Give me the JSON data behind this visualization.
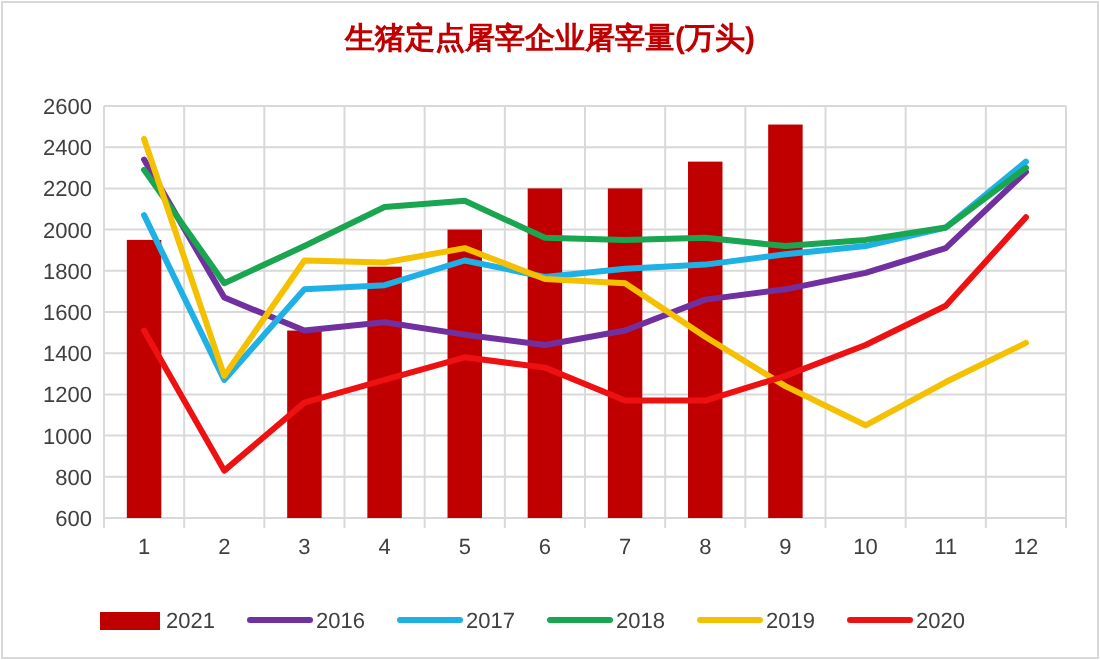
{
  "chart_data": {
    "type": "line",
    "title": "生猪定点屠宰企业屠宰量(万头)",
    "categories": [
      "1",
      "2",
      "3",
      "4",
      "5",
      "6",
      "7",
      "8",
      "9",
      "10",
      "11",
      "12"
    ],
    "ylim": [
      600,
      2600
    ],
    "yticks": [
      600,
      800,
      1000,
      1200,
      1400,
      1600,
      1800,
      2000,
      2200,
      2400,
      2600
    ],
    "grid": true,
    "legend": "bottom",
    "series": [
      {
        "name": "2021",
        "type": "bar",
        "color": "#c00000",
        "values": [
          1950,
          null,
          1510,
          1820,
          2000,
          2200,
          2200,
          2330,
          2510,
          null,
          null,
          null
        ]
      },
      {
        "name": "2016",
        "color": "#7030a0",
        "values": [
          2340,
          1670,
          1510,
          1550,
          1490,
          1440,
          1510,
          1660,
          1710,
          1790,
          1910,
          2280
        ]
      },
      {
        "name": "2017",
        "color": "#1fb0e6",
        "values": [
          2070,
          1270,
          1710,
          1730,
          1850,
          1770,
          1810,
          1830,
          1880,
          1920,
          2010,
          2330
        ]
      },
      {
        "name": "2018",
        "color": "#1aa550",
        "values": [
          2290,
          1740,
          1920,
          2110,
          2140,
          1960,
          1950,
          1960,
          1920,
          1950,
          2010,
          2300
        ]
      },
      {
        "name": "2019",
        "color": "#f5c000",
        "values": [
          2440,
          1290,
          1850,
          1840,
          1910,
          1760,
          1740,
          1480,
          1240,
          1050,
          1260,
          1450
        ]
      },
      {
        "name": "2020",
        "color": "#ee1111",
        "values": [
          1510,
          830,
          1160,
          1270,
          1380,
          1330,
          1170,
          1170,
          1290,
          1440,
          1630,
          2060
        ]
      }
    ]
  }
}
